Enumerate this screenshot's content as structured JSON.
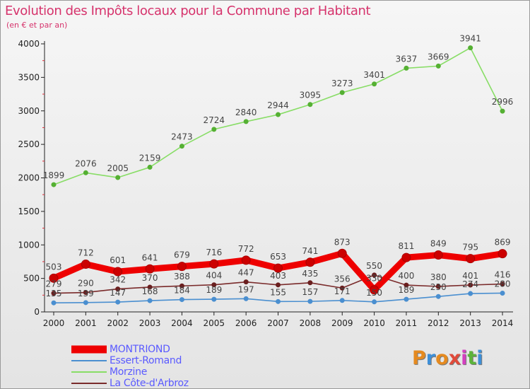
{
  "title": "Evolution des Impôts locaux pour la Commune par Habitant",
  "subtitle": "(en € et par an)",
  "logo_text": "Proxiti",
  "colors": {
    "title": "#d6336c",
    "legend_text": "#5a5aff",
    "axis": "#222222",
    "tick_marks": "#e0303c"
  },
  "chart_data": {
    "type": "line",
    "title": "Evolution des Impôts locaux pour la Commune par Habitant",
    "subtitle": "(en € et par an)",
    "xlabel": "",
    "ylabel": "",
    "x": [
      "2000",
      "2001",
      "2002",
      "2003",
      "2004",
      "2005",
      "2006",
      "2007",
      "2008",
      "2009",
      "2010",
      "2011",
      "2012",
      "2013",
      "2014"
    ],
    "ylim": [
      0,
      4000
    ],
    "yticks": [
      0,
      500,
      1000,
      1500,
      2000,
      2500,
      3000,
      3500,
      4000
    ],
    "legend_position": "bottom-left",
    "series": [
      {
        "name": "MONTRIOND",
        "color": "#ee0000",
        "marker_color": "#cc0000",
        "thick": true,
        "values": [
          503,
          712,
          601,
          641,
          679,
          716,
          772,
          653,
          741,
          873,
          330,
          811,
          849,
          795,
          869
        ],
        "labels": [
          "503",
          "712",
          "601",
          "641",
          "679",
          "716",
          "772",
          "653",
          "741",
          "873",
          "330",
          "811",
          "849",
          "795",
          "869"
        ]
      },
      {
        "name": "Essert-Romand",
        "color": "#4a8fd0",
        "marker_color": "#4a8fd0",
        "thick": false,
        "values": [
          135,
          139,
          147,
          168,
          184,
          189,
          197,
          155,
          157,
          171,
          150,
          189,
          230,
          274,
          280
        ],
        "labels": [
          "135",
          "139",
          "147",
          "168",
          "184",
          "189",
          "197",
          "155",
          "157",
          "171",
          "150",
          "189",
          "230",
          "274",
          "280"
        ]
      },
      {
        "name": "Morzine",
        "color": "#88dd66",
        "marker_color": "#55b033",
        "thick": false,
        "values": [
          1899,
          2076,
          2005,
          2159,
          2473,
          2724,
          2840,
          2944,
          3095,
          3273,
          3401,
          3637,
          3669,
          3941,
          2996
        ],
        "labels": [
          "1899",
          "2076",
          "2005",
          "2159",
          "2473",
          "2724",
          "2840",
          "2944",
          "3095",
          "3273",
          "3401",
          "3637",
          "3669",
          "3941",
          "2996"
        ]
      },
      {
        "name": "La Côte-d'Arbroz",
        "color": "#7a2b2b",
        "marker_color": "#6a1f1f",
        "thick": false,
        "values": [
          279,
          290,
          342,
          370,
          388,
          404,
          447,
          403,
          435,
          356,
          550,
          400,
          380,
          401,
          416
        ],
        "labels": [
          "279",
          "290",
          "342",
          "370",
          "388",
          "404",
          "447",
          "403",
          "435",
          "356",
          "550",
          "400",
          "380",
          "401",
          "416"
        ]
      }
    ]
  }
}
